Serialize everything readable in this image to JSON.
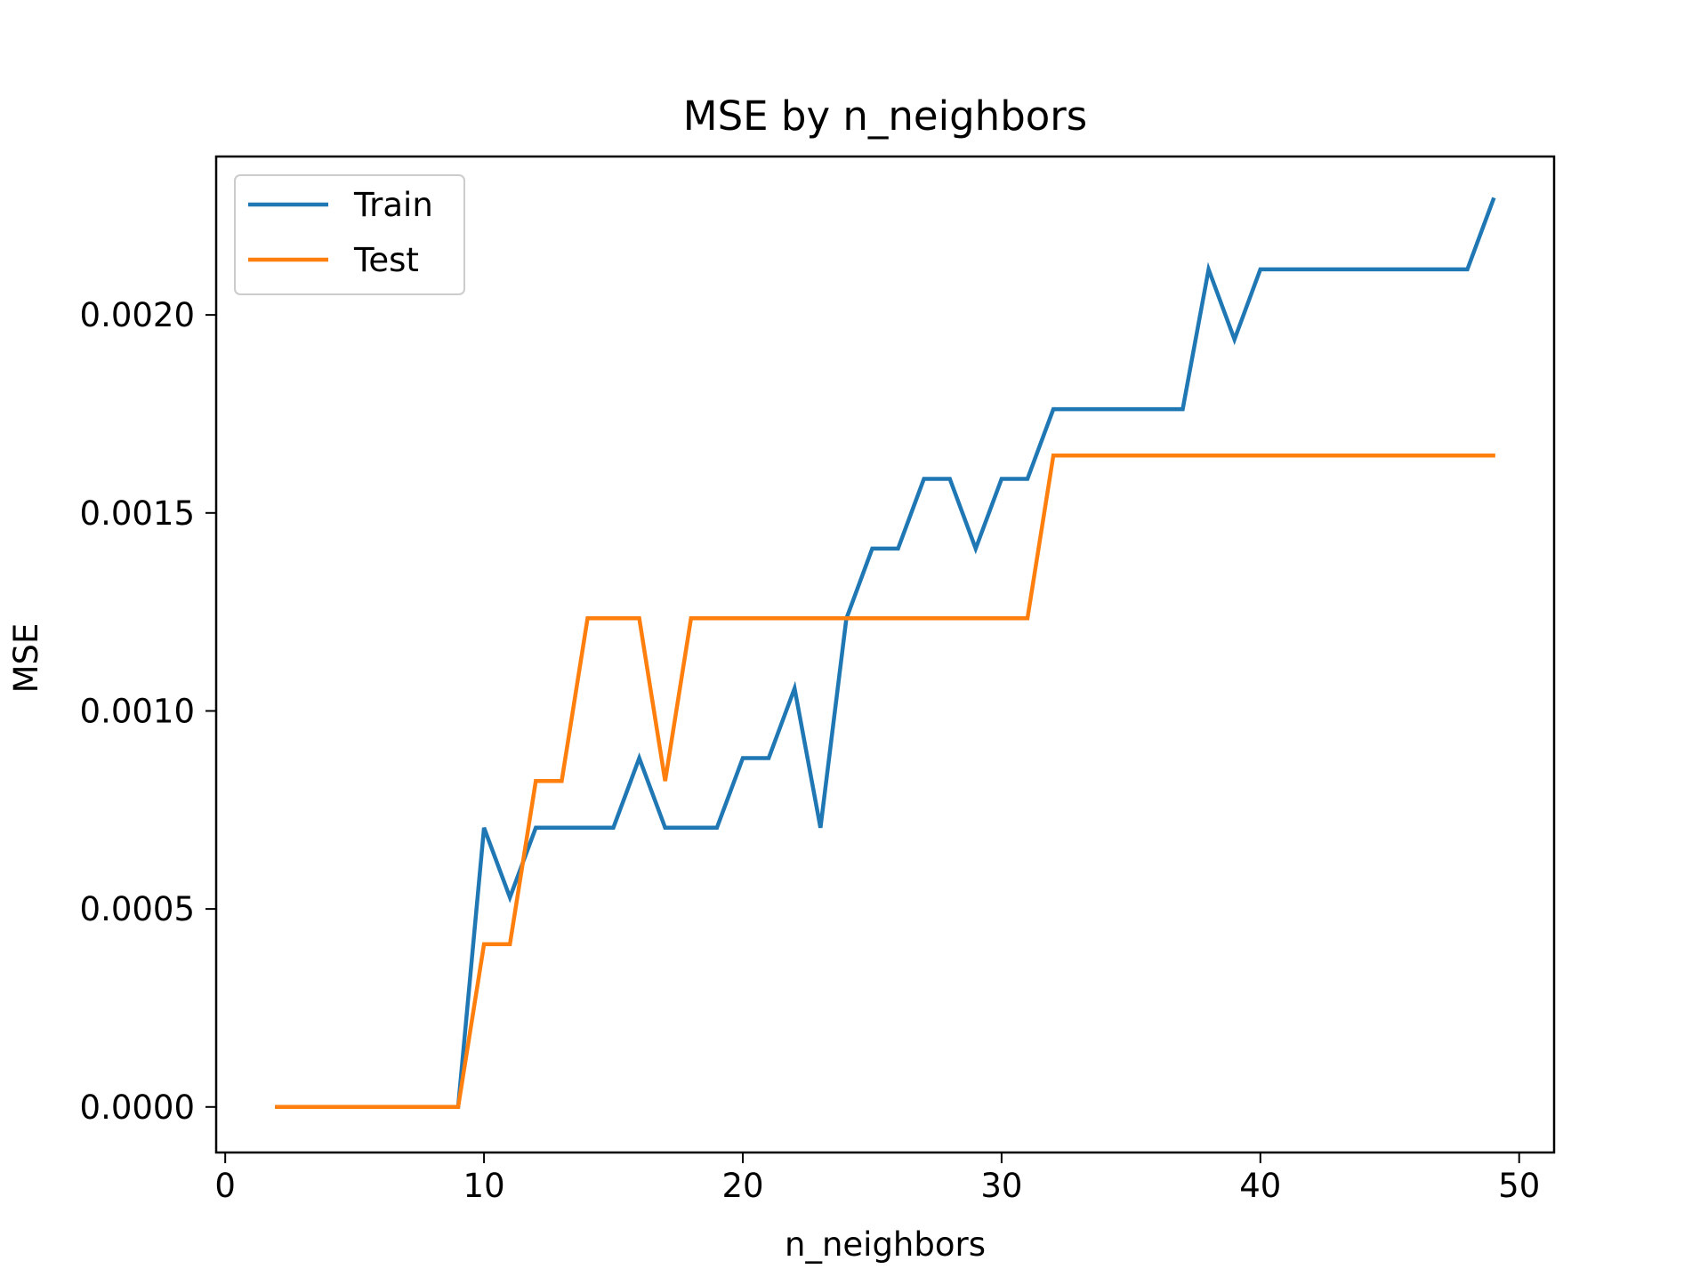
{
  "chart_data": {
    "type": "line",
    "title": "MSE by n_neighbors",
    "xlabel": "n_neighbors",
    "ylabel": "MSE",
    "xlim": [
      -0.35,
      51.35
    ],
    "ylim": [
      -0.000115,
      0.0024
    ],
    "xticks": [
      0,
      10,
      20,
      30,
      40,
      50
    ],
    "xtick_labels": [
      "0",
      "10",
      "20",
      "30",
      "40",
      "50"
    ],
    "yticks": [
      0,
      0.0005,
      0.001,
      0.0015,
      0.002
    ],
    "ytick_labels": [
      "0.0000",
      "0.0005",
      "0.0010",
      "0.0015",
      "0.0020"
    ],
    "grid": false,
    "legend_position": "top-left",
    "x": [
      2,
      3,
      4,
      5,
      6,
      7,
      8,
      9,
      10,
      11,
      12,
      13,
      14,
      15,
      16,
      17,
      18,
      19,
      20,
      21,
      22,
      23,
      24,
      25,
      26,
      27,
      28,
      29,
      30,
      31,
      32,
      33,
      34,
      35,
      36,
      37,
      38,
      39,
      40,
      41,
      42,
      43,
      44,
      45,
      46,
      47,
      48,
      49
    ],
    "series": [
      {
        "name": "Train",
        "color": "#1f77b4",
        "values": [
          0,
          0,
          0,
          0,
          0,
          0,
          0,
          0,
          0.000705,
          0.000529,
          0.000705,
          0.000705,
          0.000705,
          0.000705,
          0.000881,
          0.000705,
          0.000705,
          0.000705,
          0.000881,
          0.000881,
          0.001057,
          0.000705,
          0.001233,
          0.00141,
          0.00141,
          0.001586,
          0.001586,
          0.00141,
          0.001586,
          0.001586,
          0.001762,
          0.001762,
          0.001762,
          0.001762,
          0.001762,
          0.001762,
          0.002115,
          0.001938,
          0.002115,
          0.002115,
          0.002115,
          0.002115,
          0.002115,
          0.002115,
          0.002115,
          0.002115,
          0.002115,
          0.002291
        ]
      },
      {
        "name": "Test",
        "color": "#ff7f0e",
        "values": [
          0,
          0,
          0,
          0,
          0,
          0,
          0,
          0,
          0.000411,
          0.000411,
          0.000823,
          0.000823,
          0.001234,
          0.001234,
          0.001234,
          0.000823,
          0.001234,
          0.001234,
          0.001234,
          0.001234,
          0.001234,
          0.001234,
          0.001234,
          0.001234,
          0.001234,
          0.001234,
          0.001234,
          0.001234,
          0.001234,
          0.001234,
          0.001645,
          0.001645,
          0.001645,
          0.001645,
          0.001645,
          0.001645,
          0.001645,
          0.001645,
          0.001645,
          0.001645,
          0.001645,
          0.001645,
          0.001645,
          0.001645,
          0.001645,
          0.001645,
          0.001645,
          0.001645
        ]
      }
    ]
  }
}
